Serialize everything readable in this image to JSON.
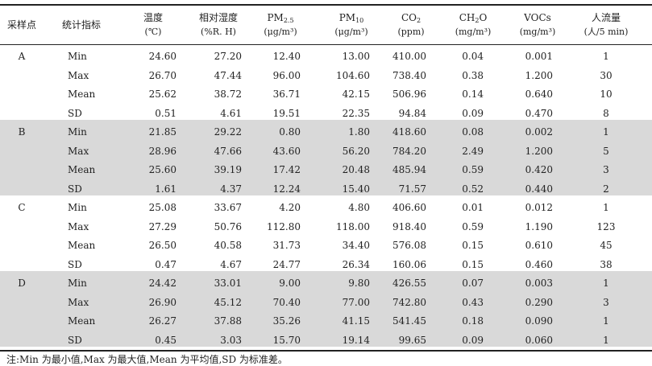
{
  "header": {
    "col0": "采样点",
    "col1": "统计指标",
    "col2": [
      "温度",
      "(℃)"
    ],
    "col3": [
      "相对湿度",
      "(%R. H)"
    ],
    "col4": [
      "PM2.5",
      "(μg/m³)"
    ],
    "col5": [
      "PM10",
      "(μg/m³)"
    ],
    "col6": [
      "CO2",
      "(ppm)"
    ],
    "col7": [
      "CH2O",
      "(mg/m³)"
    ],
    "col8": [
      "VOCs",
      "(mg/m³)"
    ],
    "col9": [
      "人流量",
      "(人/5 min)"
    ]
  },
  "groups": [
    {
      "site": "A",
      "rows": [
        [
          "Min",
          "24.60",
          "27.20",
          "12.40",
          "13.00",
          "410.00",
          "0.04",
          "0.001",
          "1"
        ],
        [
          "Max",
          "26.70",
          "47.44",
          "96.00",
          "104.60",
          "738.40",
          "0.38",
          "1.200",
          "30"
        ],
        [
          "Mean",
          "25.62",
          "38.72",
          "36.71",
          "42.15",
          "506.96",
          "0.14",
          "0.640",
          "10"
        ],
        [
          "SD",
          "0.51",
          "4.61",
          "19.51",
          "22.35",
          "94.84",
          "0.09",
          "0.470",
          "8"
        ]
      ]
    },
    {
      "site": "B",
      "rows": [
        [
          "Min",
          "21.85",
          "29.22",
          "0.80",
          "1.80",
          "418.60",
          "0.08",
          "0.002",
          "1"
        ],
        [
          "Max",
          "28.96",
          "47.66",
          "43.60",
          "56.20",
          "784.20",
          "2.49",
          "1.200",
          "5"
        ],
        [
          "Mean",
          "25.60",
          "39.19",
          "17.42",
          "20.48",
          "485.94",
          "0.59",
          "0.420",
          "3"
        ],
        [
          "SD",
          "1.61",
          "4.37",
          "12.24",
          "15.40",
          "71.57",
          "0.52",
          "0.440",
          "2"
        ]
      ]
    },
    {
      "site": "C",
      "rows": [
        [
          "Min",
          "25.08",
          "33.67",
          "4.20",
          "4.80",
          "406.60",
          "0.01",
          "0.012",
          "1"
        ],
        [
          "Max",
          "27.29",
          "50.76",
          "112.80",
          "118.00",
          "918.40",
          "0.59",
          "1.190",
          "123"
        ],
        [
          "Mean",
          "26.50",
          "40.58",
          "31.73",
          "34.40",
          "576.08",
          "0.15",
          "0.610",
          "45"
        ],
        [
          "SD",
          "0.47",
          "4.67",
          "24.77",
          "26.34",
          "160.06",
          "0.15",
          "0.460",
          "38"
        ]
      ]
    },
    {
      "site": "D",
      "rows": [
        [
          "Min",
          "24.42",
          "33.01",
          "9.00",
          "9.80",
          "426.55",
          "0.07",
          "0.003",
          "1"
        ],
        [
          "Max",
          "26.90",
          "45.12",
          "70.40",
          "77.00",
          "742.80",
          "0.43",
          "0.290",
          "3"
        ],
        [
          "Mean",
          "26.27",
          "37.88",
          "35.26",
          "41.15",
          "541.45",
          "0.18",
          "0.090",
          "1"
        ],
        [
          "SD",
          "0.45",
          "3.03",
          "15.70",
          "19.14",
          "99.65",
          "0.09",
          "0.060",
          "1"
        ]
      ]
    }
  ],
  "note": "注:Min 为最小值,Max 为最大值,Mean 为平均值,SD 为标准差。",
  "colors": {
    "shade": "#d9d9d9",
    "rule": "#222222"
  }
}
